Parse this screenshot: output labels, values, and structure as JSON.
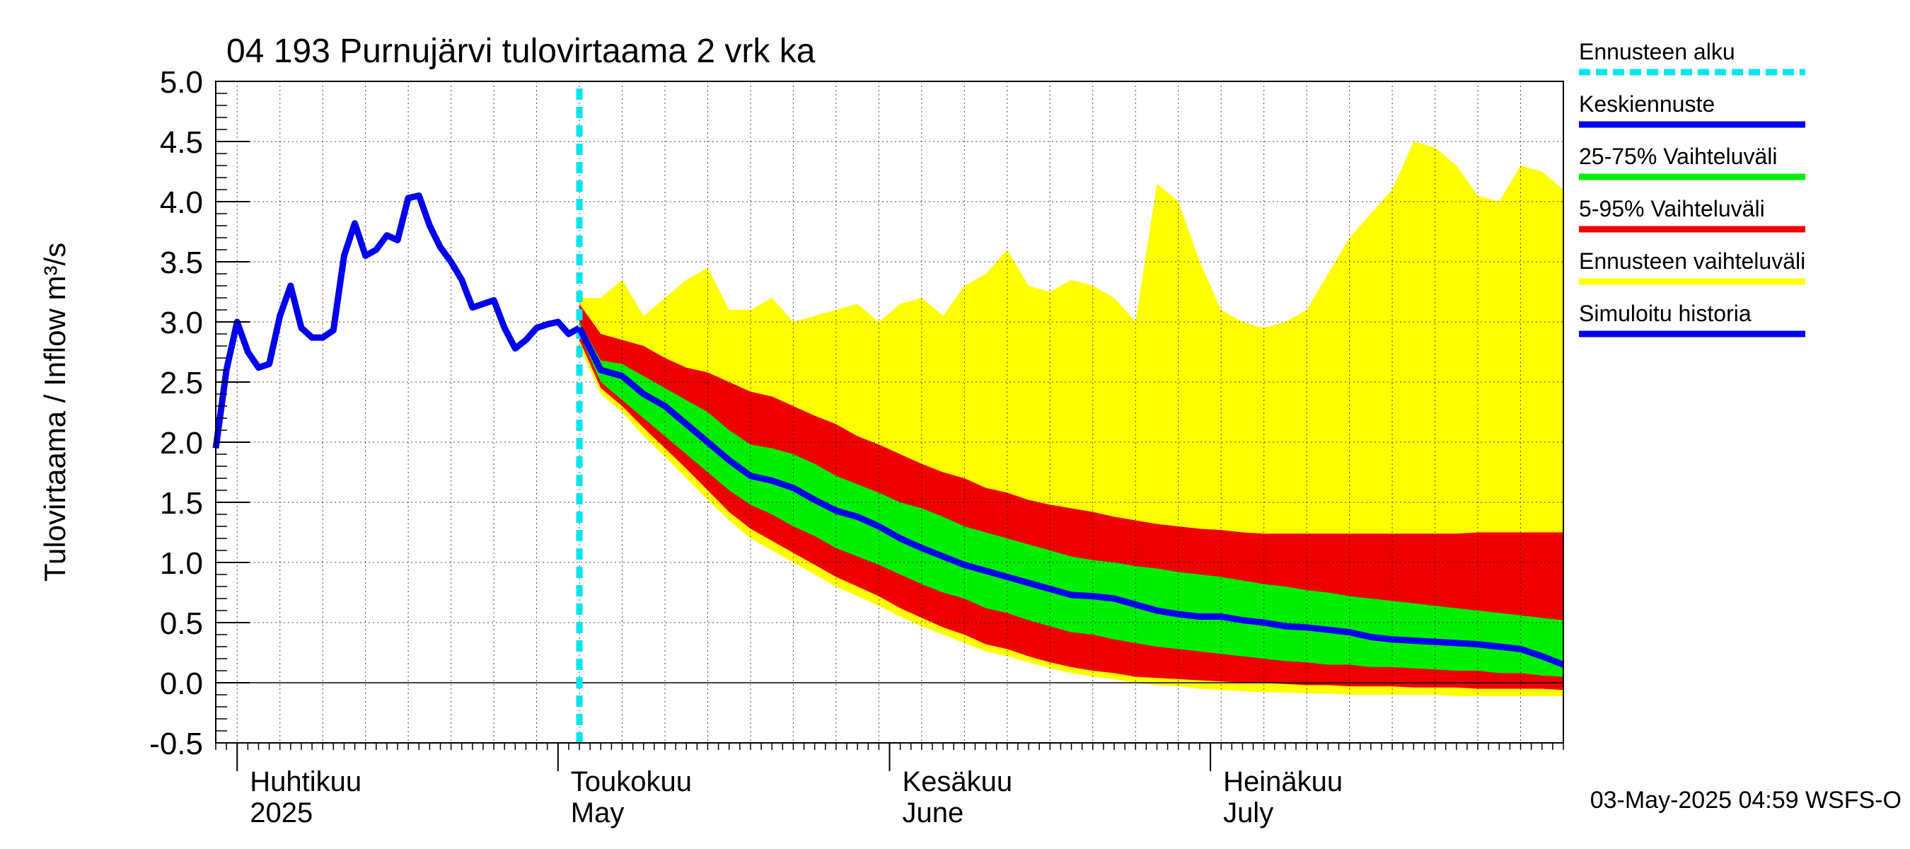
{
  "chart_data": {
    "type": "area",
    "title": "04 193 Purnujärvi tulovirtaama 2 vrk ka",
    "ylabel": "Tulovirtaama / Inflow    m³/s",
    "ylim": [
      -0.5,
      5.0
    ],
    "yticks": [
      -0.5,
      0.0,
      0.5,
      1.0,
      1.5,
      2.0,
      2.5,
      3.0,
      3.5,
      4.0,
      4.5,
      5.0
    ],
    "xlim": [
      "2025-03-30",
      "2025-08-03"
    ],
    "forecast_start": "2025-05-03",
    "grid": true,
    "legend_position": "right",
    "month_labels": [
      {
        "date": "2025-04-01",
        "line1": "Huhtikuu",
        "line2": "2025"
      },
      {
        "date": "2025-05-01",
        "line1": "Toukokuu",
        "line2": "May"
      },
      {
        "date": "2025-06-01",
        "line1": "Kesäkuu",
        "line2": "June"
      },
      {
        "date": "2025-07-01",
        "line1": "Heinäkuu",
        "line2": "July"
      }
    ],
    "footer": "03-May-2025 04:59 WSFS-O",
    "colors": {
      "forecast_start": "#00e5ee",
      "median": "#0000ee",
      "band_25_75": "#00ee00",
      "band_5_95": "#ee0000",
      "band_full": "#ffff00",
      "history": "#0000ee"
    },
    "legend": [
      {
        "label": "Ennusteen alku",
        "color": "#00e5ee",
        "dashed": true
      },
      {
        "label": "Keskiennuste",
        "color": "#0000ee",
        "dashed": false
      },
      {
        "label": "25-75% Vaihteluväli",
        "color": "#00ee00",
        "dashed": false
      },
      {
        "label": "5-95% Vaihteluväli",
        "color": "#ee0000",
        "dashed": false
      },
      {
        "label": "Ennusteen vaihteluväli",
        "color": "#ffff00",
        "dashed": false
      },
      {
        "label": "Simuloitu historia",
        "color": "#0000ee",
        "dashed": false
      }
    ],
    "history": {
      "x": [
        "2025-03-30",
        "2025-03-31",
        "2025-04-01",
        "2025-04-02",
        "2025-04-03",
        "2025-04-04",
        "2025-04-05",
        "2025-04-06",
        "2025-04-07",
        "2025-04-08",
        "2025-04-09",
        "2025-04-10",
        "2025-04-11",
        "2025-04-12",
        "2025-04-13",
        "2025-04-14",
        "2025-04-15",
        "2025-04-16",
        "2025-04-17",
        "2025-04-18",
        "2025-04-19",
        "2025-04-20",
        "2025-04-21",
        "2025-04-22",
        "2025-04-23",
        "2025-04-24",
        "2025-04-25",
        "2025-04-26",
        "2025-04-27",
        "2025-04-28",
        "2025-04-29",
        "2025-04-30",
        "2025-05-01",
        "2025-05-02",
        "2025-05-03"
      ],
      "y": [
        1.95,
        2.6,
        3.0,
        2.75,
        2.62,
        2.65,
        3.05,
        3.3,
        2.95,
        2.87,
        2.87,
        2.93,
        3.55,
        3.82,
        3.55,
        3.6,
        3.72,
        3.68,
        4.03,
        4.05,
        3.8,
        3.62,
        3.5,
        3.35,
        3.12,
        3.15,
        3.18,
        2.95,
        2.78,
        2.85,
        2.95,
        2.98,
        3.0,
        2.9,
        2.95
      ]
    },
    "forecast": {
      "x": [
        "2025-05-03",
        "2025-05-05",
        "2025-05-07",
        "2025-05-09",
        "2025-05-11",
        "2025-05-13",
        "2025-05-15",
        "2025-05-17",
        "2025-05-19",
        "2025-05-21",
        "2025-05-23",
        "2025-05-25",
        "2025-05-27",
        "2025-05-29",
        "2025-05-31",
        "2025-06-02",
        "2025-06-04",
        "2025-06-06",
        "2025-06-08",
        "2025-06-10",
        "2025-06-12",
        "2025-06-14",
        "2025-06-16",
        "2025-06-18",
        "2025-06-20",
        "2025-06-22",
        "2025-06-24",
        "2025-06-26",
        "2025-06-28",
        "2025-06-30",
        "2025-07-02",
        "2025-07-04",
        "2025-07-06",
        "2025-07-08",
        "2025-07-10",
        "2025-07-12",
        "2025-07-14",
        "2025-07-16",
        "2025-07-18",
        "2025-07-20",
        "2025-07-22",
        "2025-07-24",
        "2025-07-26",
        "2025-07-28",
        "2025-07-30",
        "2025-08-01",
        "2025-08-03"
      ],
      "median": [
        2.95,
        2.6,
        2.55,
        2.4,
        2.3,
        2.15,
        2.0,
        1.85,
        1.72,
        1.68,
        1.62,
        1.52,
        1.43,
        1.38,
        1.3,
        1.2,
        1.12,
        1.05,
        0.98,
        0.93,
        0.88,
        0.83,
        0.78,
        0.73,
        0.72,
        0.7,
        0.65,
        0.6,
        0.57,
        0.55,
        0.55,
        0.52,
        0.5,
        0.47,
        0.46,
        0.44,
        0.42,
        0.38,
        0.36,
        0.35,
        0.34,
        0.33,
        0.32,
        0.3,
        0.28,
        0.22,
        0.15
      ],
      "p25": [
        2.9,
        2.5,
        2.35,
        2.2,
        2.05,
        1.9,
        1.75,
        1.6,
        1.48,
        1.4,
        1.3,
        1.22,
        1.12,
        1.05,
        0.98,
        0.9,
        0.82,
        0.75,
        0.7,
        0.62,
        0.58,
        0.52,
        0.47,
        0.42,
        0.4,
        0.36,
        0.33,
        0.3,
        0.28,
        0.26,
        0.24,
        0.22,
        0.2,
        0.18,
        0.17,
        0.15,
        0.15,
        0.13,
        0.13,
        0.12,
        0.11,
        0.1,
        0.1,
        0.08,
        0.08,
        0.06,
        0.05
      ],
      "p75": [
        3.0,
        2.68,
        2.65,
        2.55,
        2.45,
        2.35,
        2.25,
        2.1,
        1.98,
        1.95,
        1.9,
        1.82,
        1.72,
        1.65,
        1.58,
        1.5,
        1.45,
        1.38,
        1.3,
        1.25,
        1.2,
        1.15,
        1.1,
        1.05,
        1.02,
        1.0,
        0.97,
        0.95,
        0.92,
        0.9,
        0.88,
        0.85,
        0.82,
        0.8,
        0.77,
        0.75,
        0.72,
        0.7,
        0.68,
        0.66,
        0.64,
        0.62,
        0.6,
        0.58,
        0.56,
        0.54,
        0.52
      ],
      "p5": [
        2.85,
        2.45,
        2.3,
        2.12,
        1.95,
        1.78,
        1.6,
        1.42,
        1.28,
        1.18,
        1.08,
        0.98,
        0.88,
        0.8,
        0.72,
        0.62,
        0.54,
        0.46,
        0.4,
        0.32,
        0.28,
        0.22,
        0.17,
        0.13,
        0.1,
        0.08,
        0.05,
        0.04,
        0.03,
        0.02,
        0.01,
        0.0,
        0.0,
        -0.01,
        -0.02,
        -0.02,
        -0.03,
        -0.03,
        -0.03,
        -0.04,
        -0.04,
        -0.04,
        -0.05,
        -0.05,
        -0.05,
        -0.05,
        -0.06
      ],
      "p95": [
        3.15,
        2.9,
        2.85,
        2.8,
        2.7,
        2.62,
        2.58,
        2.5,
        2.42,
        2.38,
        2.3,
        2.22,
        2.15,
        2.05,
        1.98,
        1.9,
        1.82,
        1.75,
        1.7,
        1.62,
        1.58,
        1.52,
        1.48,
        1.45,
        1.42,
        1.38,
        1.35,
        1.32,
        1.3,
        1.28,
        1.27,
        1.25,
        1.24,
        1.24,
        1.24,
        1.24,
        1.24,
        1.24,
        1.24,
        1.24,
        1.24,
        1.24,
        1.25,
        1.25,
        1.25,
        1.25,
        1.25
      ],
      "min": [
        2.8,
        2.4,
        2.25,
        2.05,
        1.88,
        1.7,
        1.52,
        1.35,
        1.2,
        1.1,
        1.0,
        0.9,
        0.8,
        0.72,
        0.64,
        0.55,
        0.47,
        0.4,
        0.33,
        0.26,
        0.22,
        0.17,
        0.12,
        0.08,
        0.05,
        0.03,
        0.0,
        -0.02,
        -0.03,
        -0.05,
        -0.06,
        -0.07,
        -0.08,
        -0.08,
        -0.09,
        -0.09,
        -0.1,
        -0.1,
        -0.1,
        -0.1,
        -0.1,
        -0.11,
        -0.11,
        -0.11,
        -0.11,
        -0.11,
        -0.11
      ],
      "max": [
        3.2,
        3.2,
        3.35,
        3.05,
        3.2,
        3.35,
        3.45,
        3.1,
        3.1,
        3.2,
        3.0,
        3.05,
        3.1,
        3.15,
        3.0,
        3.15,
        3.2,
        3.05,
        3.3,
        3.4,
        3.6,
        3.3,
        3.25,
        3.35,
        3.3,
        3.2,
        3.0,
        4.15,
        4.0,
        3.5,
        3.1,
        3.0,
        2.95,
        3.0,
        3.1,
        3.4,
        3.7,
        3.9,
        4.1,
        4.5,
        4.45,
        4.3,
        4.05,
        4.0,
        4.3,
        4.25,
        4.1
      ]
    }
  }
}
